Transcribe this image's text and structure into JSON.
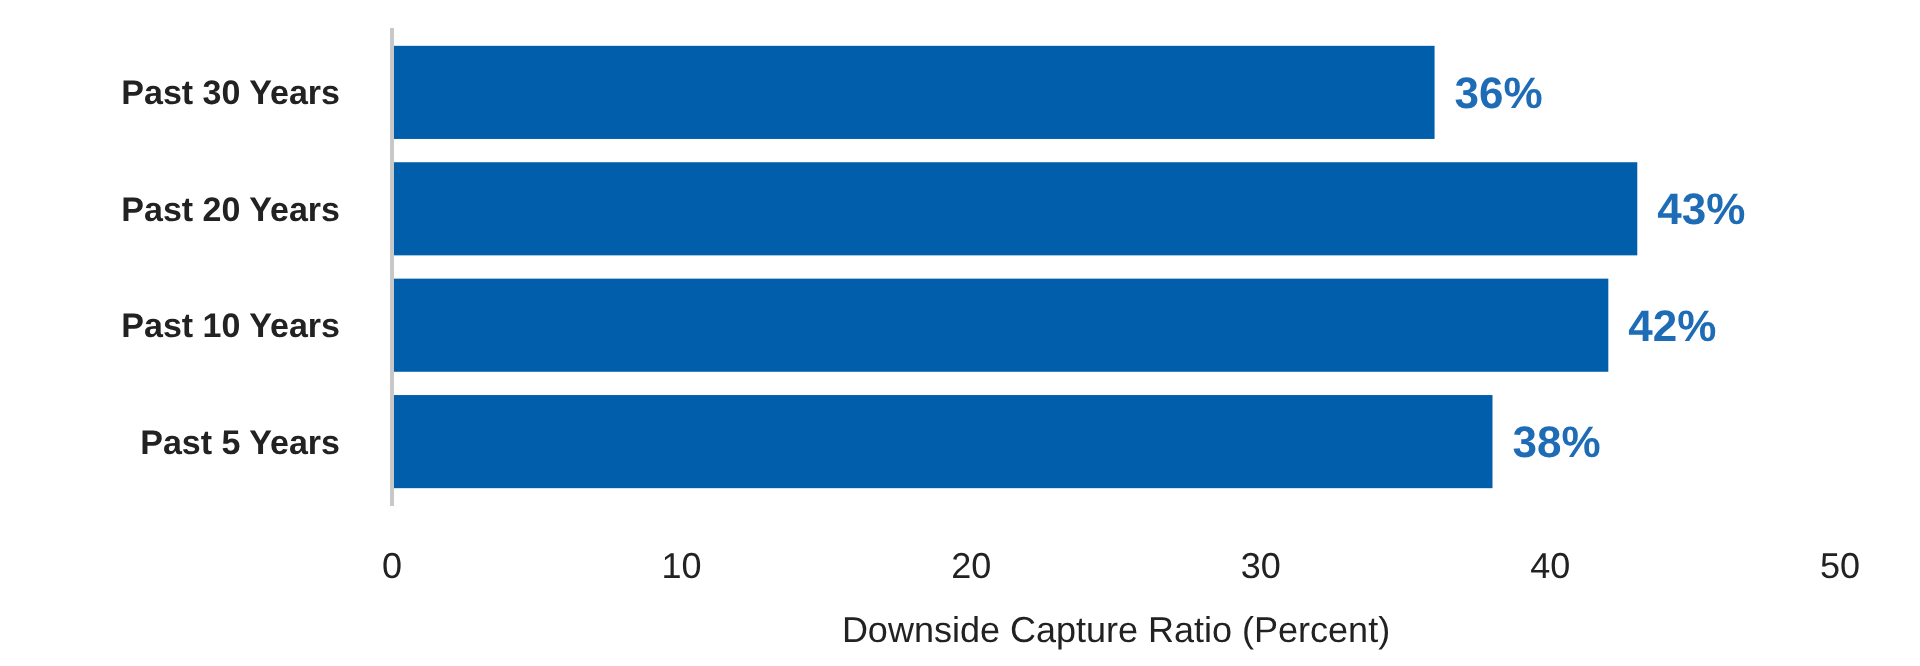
{
  "chart_data": {
    "type": "bar",
    "orientation": "horizontal",
    "categories": [
      "Past 30 Years",
      "Past 20 Years",
      "Past 10 Years",
      "Past 5 Years"
    ],
    "values": [
      36,
      43,
      42,
      38
    ],
    "value_labels": [
      "36%",
      "43%",
      "42%",
      "38%"
    ],
    "color": "#005eaa",
    "xlabel": "Downside Capture Ratio (Percent)",
    "xlim": [
      0,
      50
    ],
    "xticks": [
      0,
      10,
      20,
      30,
      40,
      50
    ],
    "grid": false
  }
}
